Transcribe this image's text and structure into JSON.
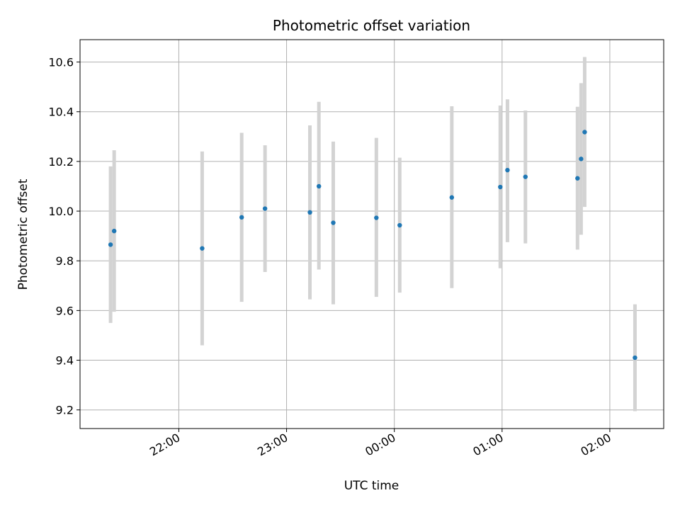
{
  "chart_data": {
    "type": "scatter",
    "title": "Photometric offset variation",
    "xlabel": "UTC time",
    "ylabel": "Photometric offset",
    "x_is_time": true,
    "xlim": [
      "21:05",
      "02:30"
    ],
    "ylim": [
      9.125,
      10.69
    ],
    "grid": true,
    "legend": "none",
    "x_ticks": [
      "22:00",
      "23:00",
      "00:00",
      "01:00",
      "02:00"
    ],
    "y_ticks": [
      "9.2",
      "9.4",
      "9.6",
      "9.8",
      "10.0",
      "10.2",
      "10.4",
      "10.6"
    ],
    "series": [
      {
        "marker_color": "#1f77b4",
        "errorbar_color": "#d3d3d3",
        "points": [
          {
            "t": "21:22",
            "y": 9.865,
            "low": 9.55,
            "high": 10.18
          },
          {
            "t": "21:24",
            "y": 9.92,
            "low": 9.595,
            "high": 10.245
          },
          {
            "t": "22:13",
            "y": 9.85,
            "low": 9.46,
            "high": 10.24
          },
          {
            "t": "22:35",
            "y": 9.975,
            "low": 9.635,
            "high": 10.315
          },
          {
            "t": "22:48",
            "y": 10.01,
            "low": 9.755,
            "high": 10.265
          },
          {
            "t": "23:13",
            "y": 9.995,
            "low": 9.645,
            "high": 10.345
          },
          {
            "t": "23:18",
            "y": 10.1,
            "low": 9.765,
            "high": 10.44
          },
          {
            "t": "23:26",
            "y": 9.953,
            "low": 9.625,
            "high": 10.28
          },
          {
            "t": "23:50",
            "y": 9.973,
            "low": 9.655,
            "high": 10.295
          },
          {
            "t": "00:03",
            "y": 9.943,
            "low": 9.672,
            "high": 10.215
          },
          {
            "t": "00:32",
            "y": 10.055,
            "low": 9.69,
            "high": 10.422
          },
          {
            "t": "00:59",
            "y": 10.097,
            "low": 9.77,
            "high": 10.425
          },
          {
            "t": "01:03",
            "y": 10.165,
            "low": 9.875,
            "high": 10.45
          },
          {
            "t": "01:13",
            "y": 10.138,
            "low": 9.87,
            "high": 10.405
          },
          {
            "t": "01:42",
            "y": 10.132,
            "low": 9.845,
            "high": 10.42
          },
          {
            "t": "01:44",
            "y": 10.21,
            "low": 9.905,
            "high": 10.515
          },
          {
            "t": "01:46",
            "y": 10.318,
            "low": 10.017,
            "high": 10.62
          },
          {
            "t": "02:14",
            "y": 9.41,
            "low": 9.195,
            "high": 9.625
          }
        ]
      }
    ]
  }
}
